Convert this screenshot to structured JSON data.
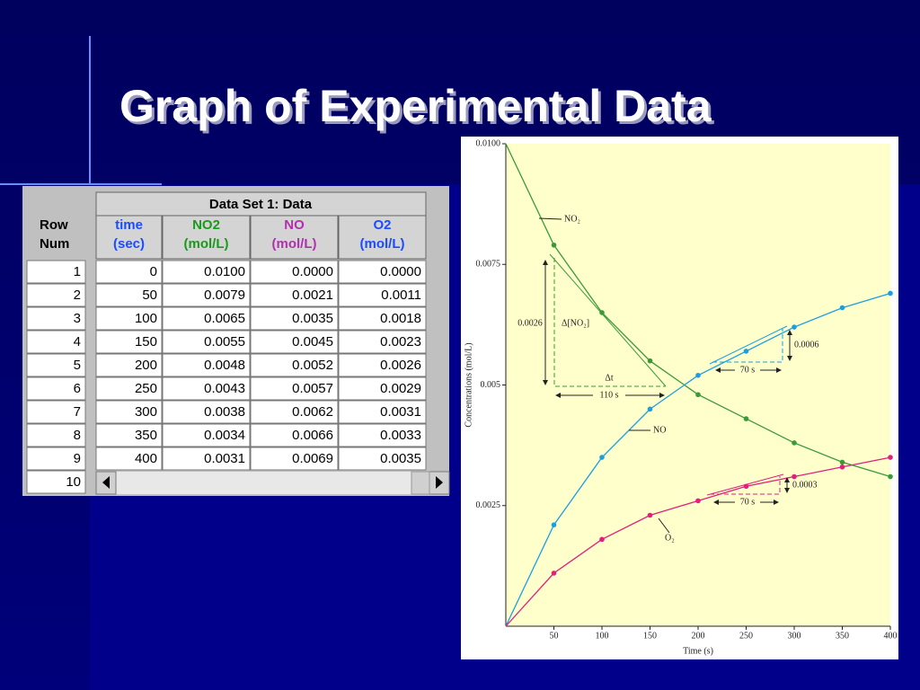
{
  "title": "Graph of Experimental Data",
  "table": {
    "title": "Data Set 1: Data",
    "columns": [
      [
        "Row",
        "Num"
      ],
      [
        "time",
        "(sec)"
      ],
      [
        "NO2",
        "(mol/L)"
      ],
      [
        "NO",
        "(mol/L)"
      ],
      [
        "O2",
        "(mol/L)"
      ]
    ],
    "rows": [
      [
        "1",
        "0",
        "0.0100",
        "0.0000",
        "0.0000"
      ],
      [
        "2",
        "50",
        "0.0079",
        "0.0021",
        "0.0011"
      ],
      [
        "3",
        "100",
        "0.0065",
        "0.0035",
        "0.0018"
      ],
      [
        "4",
        "150",
        "0.0055",
        "0.0045",
        "0.0023"
      ],
      [
        "5",
        "200",
        "0.0048",
        "0.0052",
        "0.0026"
      ],
      [
        "6",
        "250",
        "0.0043",
        "0.0057",
        "0.0029"
      ],
      [
        "7",
        "300",
        "0.0038",
        "0.0062",
        "0.0031"
      ],
      [
        "8",
        "350",
        "0.0034",
        "0.0066",
        "0.0033"
      ],
      [
        "9",
        "400",
        "0.0031",
        "0.0069",
        "0.0035"
      ],
      [
        "10"
      ]
    ]
  },
  "chart_data": {
    "type": "line",
    "x": [
      0,
      50,
      100,
      150,
      200,
      250,
      300,
      350,
      400
    ],
    "xlim": [
      0,
      400
    ],
    "xticks": [
      50,
      100,
      150,
      200,
      250,
      300,
      350,
      400
    ],
    "ylim": [
      0,
      0.01
    ],
    "yticks": [
      0.0025,
      0.005,
      0.0075,
      {
        "value": 0.01,
        "label": "0.0100"
      }
    ],
    "x_label": "Time (s)",
    "y_label": "Concentrations (mol/L)",
    "series": [
      {
        "name": "NO₂",
        "color": "#3a9a3a",
        "values": [
          0.01,
          0.0079,
          0.0065,
          0.0055,
          0.0048,
          0.0043,
          0.0038,
          0.0034,
          0.0031
        ]
      },
      {
        "name": "NO",
        "color": "#1aa0e0",
        "values": [
          0,
          0.0021,
          0.0035,
          0.0045,
          0.0052,
          0.0057,
          0.0062,
          0.0066,
          0.0069
        ]
      },
      {
        "name": "O₂",
        "color": "#e0207a",
        "values": [
          0,
          0.0011,
          0.0018,
          0.0023,
          0.0026,
          0.0029,
          0.0031,
          0.0033,
          0.0035
        ]
      }
    ],
    "annotations": [
      "0.0026",
      "Δ[NO₂]",
      "Δt",
      "110 s",
      "0.0006",
      "70 s",
      "0.0003",
      "70 s"
    ]
  }
}
